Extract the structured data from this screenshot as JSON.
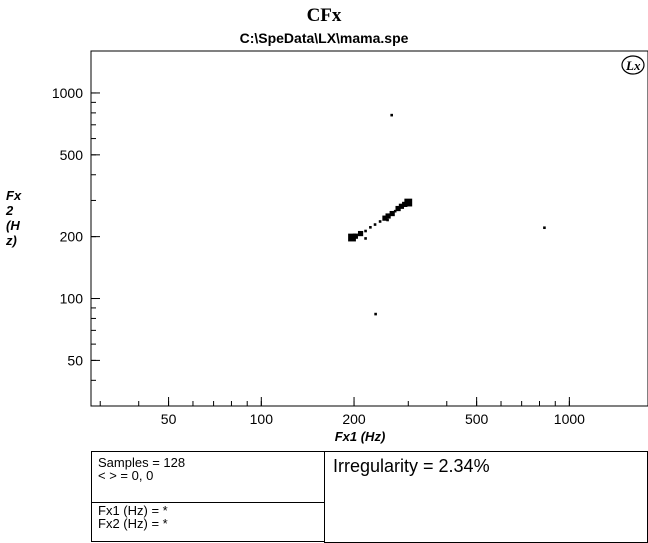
{
  "header": {
    "title": "CFx",
    "subtitle": "C:\\SpeData\\LX\\mama.spe"
  },
  "logo": {
    "text": "Lx"
  },
  "chart_data": {
    "type": "scatter",
    "title": "CFx",
    "subtitle": "C:\\SpeData\\LX\\mama.spe",
    "xlabel": "Fx1 (Hz)",
    "ylabel": "Fx2 (Hz)",
    "xscale": "log",
    "yscale": "log",
    "xlim": [
      28,
      1800
    ],
    "ylim": [
      30,
      1600
    ],
    "xticks": [
      50,
      100,
      200,
      500,
      1000
    ],
    "xtick_labels": [
      "50",
      "100",
      "200",
      "500",
      "1000"
    ],
    "yticks": [
      50,
      100,
      200,
      500,
      1000
    ],
    "ytick_labels": [
      "50",
      "100",
      "200",
      "500",
      "1000"
    ],
    "grid": false,
    "points": [
      {
        "x": 197,
        "y": 198,
        "size": 3
      },
      {
        "x": 202,
        "y": 201,
        "size": 2
      },
      {
        "x": 210,
        "y": 207,
        "size": 2
      },
      {
        "x": 218,
        "y": 213,
        "size": 1
      },
      {
        "x": 226,
        "y": 222,
        "size": 1
      },
      {
        "x": 234,
        "y": 229,
        "size": 1
      },
      {
        "x": 243,
        "y": 237,
        "size": 1
      },
      {
        "x": 252,
        "y": 246,
        "size": 2
      },
      {
        "x": 258,
        "y": 252,
        "size": 2
      },
      {
        "x": 266,
        "y": 259,
        "size": 2
      },
      {
        "x": 272,
        "y": 266,
        "size": 1
      },
      {
        "x": 278,
        "y": 274,
        "size": 2
      },
      {
        "x": 285,
        "y": 281,
        "size": 2
      },
      {
        "x": 292,
        "y": 287,
        "size": 2
      },
      {
        "x": 300,
        "y": 293,
        "size": 3
      },
      {
        "x": 305,
        "y": 296,
        "size": 1
      },
      {
        "x": 218,
        "y": 196,
        "size": 1
      },
      {
        "x": 257,
        "y": 241,
        "size": 1
      },
      {
        "x": 295,
        "y": 283,
        "size": 1
      },
      {
        "x": 265,
        "y": 780,
        "size": 1
      },
      {
        "x": 235,
        "y": 84,
        "size": 1
      },
      {
        "x": 830,
        "y": 221,
        "size": 1
      }
    ]
  },
  "stats": {
    "samples": "Samples = 128",
    "brackets": "< > = 0, 0"
  },
  "cursor": {
    "fx1": "Fx1 (Hz) = *",
    "fx2": "Fx2 (Hz) = *"
  },
  "irregularity": "Irregularity = 2.34%"
}
